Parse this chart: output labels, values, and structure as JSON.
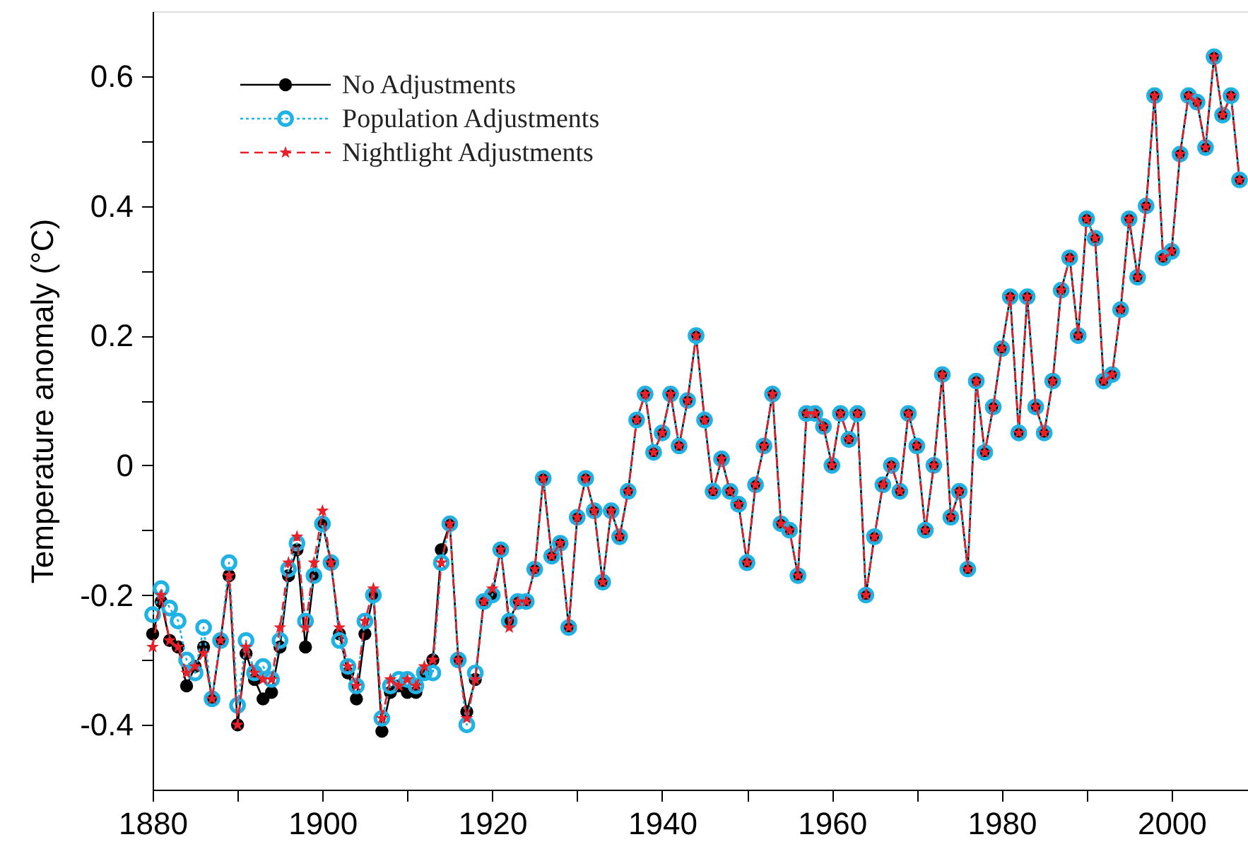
{
  "chart_data": {
    "type": "line",
    "ylabel": "Temperature anomaly (°C)",
    "x": [
      1880,
      1881,
      1882,
      1883,
      1884,
      1885,
      1886,
      1887,
      1888,
      1889,
      1890,
      1891,
      1892,
      1893,
      1894,
      1895,
      1896,
      1897,
      1898,
      1899,
      1900,
      1901,
      1902,
      1903,
      1904,
      1905,
      1906,
      1907,
      1908,
      1909,
      1910,
      1911,
      1912,
      1913,
      1914,
      1915,
      1916,
      1917,
      1918,
      1919,
      1920,
      1921,
      1922,
      1923,
      1924,
      1925,
      1926,
      1927,
      1928,
      1929,
      1930,
      1931,
      1932,
      1933,
      1934,
      1935,
      1936,
      1937,
      1938,
      1939,
      1940,
      1941,
      1942,
      1943,
      1944,
      1945,
      1946,
      1947,
      1948,
      1949,
      1950,
      1951,
      1952,
      1953,
      1954,
      1955,
      1956,
      1957,
      1958,
      1959,
      1960,
      1961,
      1962,
      1963,
      1964,
      1965,
      1966,
      1967,
      1968,
      1969,
      1970,
      1971,
      1972,
      1973,
      1974,
      1975,
      1976,
      1977,
      1978,
      1979,
      1980,
      1981,
      1982,
      1983,
      1984,
      1985,
      1986,
      1987,
      1988,
      1989,
      1990,
      1991,
      1992,
      1993,
      1994,
      1995,
      1996,
      1997,
      1998,
      1999,
      2000,
      2001,
      2002,
      2003,
      2004,
      2005,
      2006,
      2007,
      2008
    ],
    "series": [
      {
        "name": "No Adjustments",
        "color": "#000000",
        "marker": "circle",
        "line_style": "solid",
        "values": [
          -0.26,
          -0.21,
          -0.27,
          -0.28,
          -0.34,
          -0.31,
          -0.28,
          -0.36,
          -0.27,
          -0.17,
          -0.4,
          -0.29,
          -0.33,
          -0.36,
          -0.35,
          -0.28,
          -0.17,
          -0.13,
          -0.28,
          -0.17,
          -0.09,
          -0.15,
          -0.26,
          -0.32,
          -0.36,
          -0.26,
          -0.2,
          -0.41,
          -0.35,
          -0.34,
          -0.35,
          -0.35,
          -0.32,
          -0.3,
          -0.13,
          -0.09,
          -0.3,
          -0.38,
          -0.33,
          -0.21,
          -0.2,
          -0.13,
          -0.24,
          -0.21,
          -0.21,
          -0.16,
          -0.02,
          -0.14,
          -0.12,
          -0.25,
          -0.08,
          -0.02,
          -0.07,
          -0.18,
          -0.07,
          -0.11,
          -0.04,
          0.07,
          0.11,
          0.02,
          0.05,
          0.11,
          0.03,
          0.1,
          0.2,
          0.07,
          -0.04,
          0.01,
          -0.04,
          -0.06,
          -0.15,
          -0.03,
          0.03,
          0.11,
          -0.09,
          -0.1,
          -0.17,
          0.08,
          0.08,
          0.06,
          0.0,
          0.08,
          0.04,
          0.08,
          -0.2,
          -0.11,
          -0.03,
          0.0,
          -0.04,
          0.08,
          0.03,
          -0.1,
          0.0,
          0.14,
          -0.08,
          -0.04,
          -0.16,
          0.13,
          0.02,
          0.09,
          0.18,
          0.26,
          0.05,
          0.26,
          0.09,
          0.05,
          0.13,
          0.27,
          0.32,
          0.2,
          0.38,
          0.35,
          0.13,
          0.14,
          0.24,
          0.38,
          0.29,
          0.4,
          0.57,
          0.32,
          0.33,
          0.48,
          0.57,
          0.56,
          0.49,
          0.63,
          0.54,
          0.57,
          0.44
        ]
      },
      {
        "name": "Population Adjustments",
        "color": "#1fb3e5",
        "marker": "circle",
        "line_style": "dotted",
        "values": [
          -0.23,
          -0.19,
          -0.22,
          -0.24,
          -0.3,
          -0.32,
          -0.25,
          -0.36,
          -0.27,
          -0.15,
          -0.37,
          -0.27,
          -0.32,
          -0.31,
          -0.33,
          -0.27,
          -0.16,
          -0.12,
          -0.24,
          -0.17,
          -0.09,
          -0.15,
          -0.27,
          -0.31,
          -0.34,
          -0.24,
          -0.2,
          -0.39,
          -0.34,
          -0.33,
          -0.33,
          -0.34,
          -0.32,
          -0.32,
          -0.15,
          -0.09,
          -0.3,
          -0.4,
          -0.32,
          -0.21,
          -0.2,
          -0.13,
          -0.24,
          -0.21,
          -0.21,
          -0.16,
          -0.02,
          -0.14,
          -0.12,
          -0.25,
          -0.08,
          -0.02,
          -0.07,
          -0.18,
          -0.07,
          -0.11,
          -0.04,
          0.07,
          0.11,
          0.02,
          0.05,
          0.11,
          0.03,
          0.1,
          0.2,
          0.07,
          -0.04,
          0.01,
          -0.04,
          -0.06,
          -0.15,
          -0.03,
          0.03,
          0.11,
          -0.09,
          -0.1,
          -0.17,
          0.08,
          0.08,
          0.06,
          0.0,
          0.08,
          0.04,
          0.08,
          -0.2,
          -0.11,
          -0.03,
          0.0,
          -0.04,
          0.08,
          0.03,
          -0.1,
          0.0,
          0.14,
          -0.08,
          -0.04,
          -0.16,
          0.13,
          0.02,
          0.09,
          0.18,
          0.26,
          0.05,
          0.26,
          0.09,
          0.05,
          0.13,
          0.27,
          0.32,
          0.2,
          0.38,
          0.35,
          0.13,
          0.14,
          0.24,
          0.38,
          0.29,
          0.4,
          0.57,
          0.32,
          0.33,
          0.48,
          0.57,
          0.56,
          0.49,
          0.63,
          0.54,
          0.57,
          0.44
        ]
      },
      {
        "name": "Nightlight Adjustments",
        "color": "#e8202a",
        "marker": "star",
        "line_style": "dashed",
        "values": [
          -0.28,
          -0.2,
          -0.27,
          -0.28,
          -0.32,
          -0.31,
          -0.29,
          -0.36,
          -0.27,
          -0.17,
          -0.4,
          -0.28,
          -0.32,
          -0.33,
          -0.33,
          -0.25,
          -0.15,
          -0.11,
          -0.25,
          -0.15,
          -0.07,
          -0.15,
          -0.25,
          -0.31,
          -0.34,
          -0.24,
          -0.19,
          -0.39,
          -0.33,
          -0.34,
          -0.33,
          -0.34,
          -0.31,
          -0.3,
          -0.15,
          -0.09,
          -0.3,
          -0.39,
          -0.33,
          -0.21,
          -0.19,
          -0.13,
          -0.25,
          -0.21,
          -0.21,
          -0.16,
          -0.02,
          -0.14,
          -0.12,
          -0.25,
          -0.08,
          -0.02,
          -0.07,
          -0.18,
          -0.07,
          -0.11,
          -0.04,
          0.07,
          0.11,
          0.02,
          0.05,
          0.11,
          0.03,
          0.1,
          0.2,
          0.07,
          -0.04,
          0.01,
          -0.04,
          -0.06,
          -0.15,
          -0.03,
          0.03,
          0.11,
          -0.09,
          -0.1,
          -0.17,
          0.08,
          0.08,
          0.06,
          0.0,
          0.08,
          0.04,
          0.08,
          -0.2,
          -0.11,
          -0.03,
          0.0,
          -0.04,
          0.08,
          0.03,
          -0.1,
          0.0,
          0.14,
          -0.08,
          -0.04,
          -0.16,
          0.13,
          0.02,
          0.09,
          0.18,
          0.26,
          0.05,
          0.26,
          0.09,
          0.05,
          0.13,
          0.27,
          0.32,
          0.2,
          0.38,
          0.35,
          0.13,
          0.14,
          0.24,
          0.38,
          0.29,
          0.4,
          0.57,
          0.32,
          0.33,
          0.48,
          0.57,
          0.56,
          0.49,
          0.63,
          0.54,
          0.57,
          0.44
        ]
      }
    ],
    "xlim": [
      1880,
      2009
    ],
    "xticks": [
      1880,
      {
        "value": 1890,
        "label": null
      },
      1900,
      {
        "value": 1910,
        "label": null
      },
      1920,
      {
        "value": 1930,
        "label": null
      },
      1940,
      {
        "value": 1950,
        "label": null
      },
      1960,
      {
        "value": 1970,
        "label": null
      },
      1980,
      {
        "value": 1990,
        "label": null
      },
      2000
    ],
    "ylim": [
      -0.5,
      0.7
    ],
    "yticks": [
      -0.4,
      {
        "value": -0.3,
        "label": null
      },
      -0.2,
      {
        "value": -0.1,
        "label": null
      },
      0,
      {
        "value": 0.1,
        "label": null
      },
      0.2,
      {
        "value": 0.3,
        "label": null
      },
      0.4,
      {
        "value": 0.5,
        "label": null
      },
      0.6
    ],
    "grid": false,
    "legend": "top left"
  }
}
